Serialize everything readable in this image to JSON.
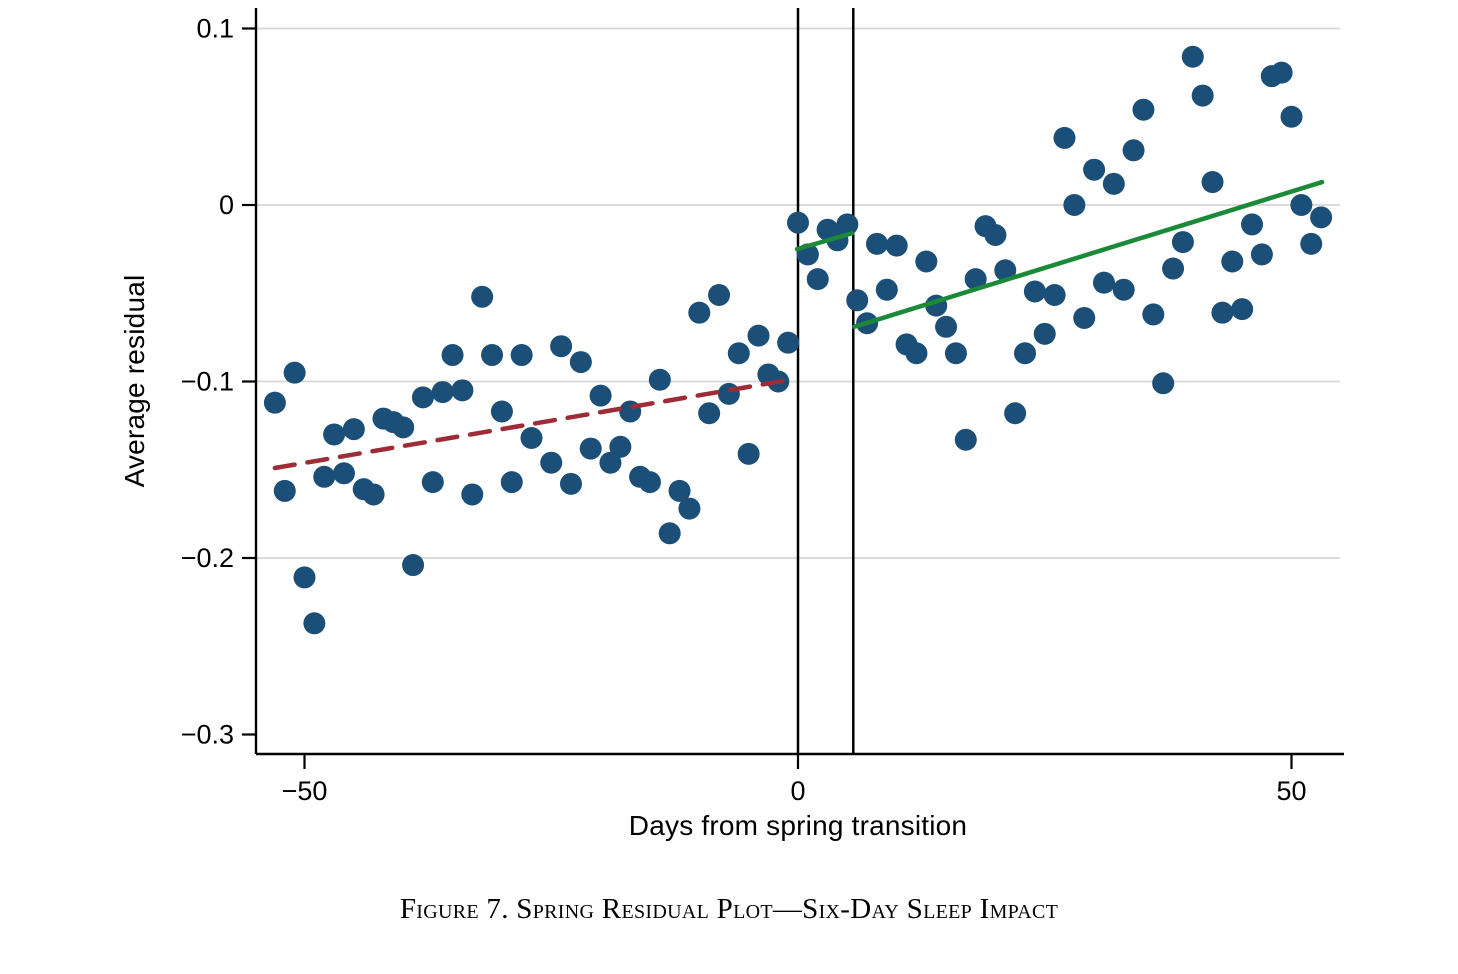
{
  "figure": {
    "caption": "Figure 7. Spring Residual Plot—Six-Day Sleep Impact"
  },
  "chart_data": {
    "type": "scatter",
    "title": "",
    "xlabel": "Days from spring transition",
    "ylabel": "Average residual",
    "xlim": [
      -55,
      55
    ],
    "ylim": [
      -0.311,
      0.112
    ],
    "grid": true,
    "legend_position": "none",
    "x_ticks": [
      {
        "value": -50,
        "label": "−50"
      },
      {
        "value": 0,
        "label": "0"
      },
      {
        "value": 50,
        "label": "50"
      }
    ],
    "y_ticks": [
      {
        "value": 0.1,
        "label": "0.1"
      },
      {
        "value": 0,
        "label": "0"
      },
      {
        "value": -0.1,
        "label": "−0.1"
      },
      {
        "value": -0.2,
        "label": "−0.2"
      },
      {
        "value": -0.3,
        "label": "−0.3"
      }
    ],
    "gridline_y_values": [
      0.1,
      0,
      -0.1,
      -0.2
    ],
    "reference_lines_x": [
      0,
      5.6
    ],
    "series": [
      {
        "name": "pre-transition residuals",
        "type": "scatter",
        "color": "#1b4f78",
        "points": [
          [
            -53,
            -0.112
          ],
          [
            -52,
            -0.162
          ],
          [
            -51,
            -0.095
          ],
          [
            -50,
            -0.211
          ],
          [
            -49,
            -0.237
          ],
          [
            -48,
            -0.154
          ],
          [
            -47,
            -0.13
          ],
          [
            -46,
            -0.152
          ],
          [
            -45,
            -0.127
          ],
          [
            -44,
            -0.161
          ],
          [
            -43,
            -0.164
          ],
          [
            -42,
            -0.121
          ],
          [
            -41,
            -0.123
          ],
          [
            -40,
            -0.126
          ],
          [
            -39,
            -0.204
          ],
          [
            -38,
            -0.109
          ],
          [
            -37,
            -0.157
          ],
          [
            -36,
            -0.106
          ],
          [
            -35,
            -0.085
          ],
          [
            -34,
            -0.105
          ],
          [
            -33,
            -0.164
          ],
          [
            -32,
            -0.052
          ],
          [
            -31,
            -0.085
          ],
          [
            -30,
            -0.117
          ],
          [
            -29,
            -0.157
          ],
          [
            -28,
            -0.085
          ],
          [
            -27,
            -0.132
          ],
          [
            -25,
            -0.146
          ],
          [
            -24,
            -0.08
          ],
          [
            -23,
            -0.158
          ],
          [
            -22,
            -0.089
          ],
          [
            -21,
            -0.138
          ],
          [
            -20,
            -0.108
          ],
          [
            -19,
            -0.146
          ],
          [
            -18,
            -0.137
          ],
          [
            -17,
            -0.117
          ],
          [
            -16,
            -0.154
          ],
          [
            -15,
            -0.157
          ],
          [
            -14,
            -0.099
          ],
          [
            -13,
            -0.186
          ],
          [
            -12,
            -0.162
          ],
          [
            -11,
            -0.172
          ],
          [
            -10,
            -0.061
          ],
          [
            -9,
            -0.118
          ],
          [
            -8,
            -0.051
          ],
          [
            -7,
            -0.107
          ],
          [
            -6,
            -0.084
          ],
          [
            -5,
            -0.141
          ],
          [
            -4,
            -0.074
          ],
          [
            -3,
            -0.096
          ],
          [
            -2,
            -0.1
          ],
          [
            -1,
            -0.078
          ]
        ]
      },
      {
        "name": "post-transition residuals",
        "type": "scatter",
        "color": "#1b4f78",
        "points": [
          [
            0,
            -0.01
          ],
          [
            1,
            -0.028
          ],
          [
            2,
            -0.042
          ],
          [
            3,
            -0.014
          ],
          [
            4,
            -0.02
          ],
          [
            5,
            -0.011
          ],
          [
            6,
            -0.054
          ],
          [
            7,
            -0.067
          ],
          [
            8,
            -0.022
          ],
          [
            9,
            -0.048
          ],
          [
            10,
            -0.023
          ],
          [
            11,
            -0.079
          ],
          [
            12,
            -0.084
          ],
          [
            13,
            -0.032
          ],
          [
            14,
            -0.057
          ],
          [
            15,
            -0.069
          ],
          [
            16,
            -0.084
          ],
          [
            17,
            -0.133
          ],
          [
            18,
            -0.042
          ],
          [
            19,
            -0.012
          ],
          [
            20,
            -0.017
          ],
          [
            21,
            -0.037
          ],
          [
            22,
            -0.118
          ],
          [
            23,
            -0.084
          ],
          [
            24,
            -0.049
          ],
          [
            25,
            -0.073
          ],
          [
            26,
            -0.051
          ],
          [
            27,
            0.038
          ],
          [
            28,
            0.0
          ],
          [
            29,
            -0.064
          ],
          [
            30,
            0.02
          ],
          [
            31,
            -0.044
          ],
          [
            32,
            0.012
          ],
          [
            33,
            -0.048
          ],
          [
            34,
            0.031
          ],
          [
            35,
            0.054
          ],
          [
            36,
            -0.062
          ],
          [
            37,
            -0.101
          ],
          [
            38,
            -0.036
          ],
          [
            39,
            -0.021
          ],
          [
            40,
            0.084
          ],
          [
            41,
            0.062
          ],
          [
            42,
            0.013
          ],
          [
            43,
            -0.061
          ],
          [
            44,
            -0.032
          ],
          [
            45,
            -0.059
          ],
          [
            46,
            -0.011
          ],
          [
            47,
            -0.028
          ],
          [
            48,
            0.073
          ],
          [
            49,
            0.075
          ],
          [
            50,
            0.05
          ],
          [
            51,
            0.0
          ],
          [
            52,
            -0.022
          ],
          [
            53,
            -0.007
          ]
        ]
      }
    ],
    "fit_lines": [
      {
        "name": "pre-transition-fit",
        "style": "dashed",
        "color": "#9e2b35",
        "x1": -53,
        "y1": -0.149,
        "x2": -0.8,
        "y2": -0.099
      },
      {
        "name": "donut-window-fit",
        "style": "solid",
        "color": "#1a8a38",
        "x1": -0.1,
        "y1": -0.025,
        "x2": 5.5,
        "y2": -0.016
      },
      {
        "name": "post-transition-fit",
        "style": "solid",
        "color": "#1a8a38",
        "x1": 5.7,
        "y1": -0.069,
        "x2": 53.1,
        "y2": 0.013
      }
    ],
    "colors": {
      "dot": "#1b4f78",
      "pre_fit": "#9e2b35",
      "post_fit": "#1a8a38",
      "gridline": "#d6d6d6",
      "axis": "#000000",
      "reference_line": "#000000"
    }
  }
}
